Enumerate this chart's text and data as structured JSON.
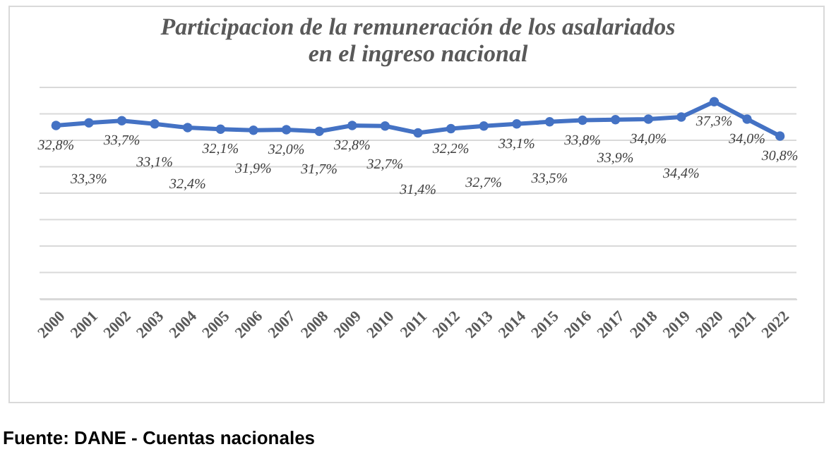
{
  "chart_data": {
    "type": "line",
    "title": "Participacion de la remuneración de los asalariados en el ingreso nacional",
    "categories": [
      "2000",
      "2001",
      "2002",
      "2003",
      "2004",
      "2005",
      "2006",
      "2007",
      "2008",
      "2009",
      "2010",
      "2011",
      "2012",
      "2013",
      "2014",
      "2015",
      "2016",
      "2017",
      "2018",
      "2019",
      "2020",
      "2021",
      "2022"
    ],
    "values": [
      32.8,
      33.3,
      33.7,
      33.1,
      32.4,
      32.1,
      31.9,
      32.0,
      31.7,
      32.8,
      32.7,
      31.4,
      32.2,
      32.7,
      33.1,
      33.5,
      33.8,
      33.9,
      34.0,
      34.4,
      37.3,
      34.0,
      30.8
    ],
    "value_labels": [
      "32,8%",
      "33,3%",
      "33,7%",
      "33,1%",
      "32,4%",
      "32,1%",
      "31,9%",
      "32,0%",
      "31,7%",
      "32,8%",
      "32,7%",
      "31,4%",
      "32,2%",
      "32,7%",
      "33,1%",
      "33,5%",
      "33,8%",
      "33,9%",
      "34,0%",
      "34,4%",
      "37,3%",
      "34,0%",
      "30,8%"
    ],
    "color": "#4472c4",
    "marker": "circle",
    "grid": "y",
    "ylim": [
      0,
      40
    ],
    "yticks": [
      0,
      5,
      10,
      15,
      20,
      25,
      30,
      35,
      40
    ],
    "tick_labels": "x",
    "annotations": [
      "Fuente: DANE - Cuentas nacionales"
    ]
  }
}
